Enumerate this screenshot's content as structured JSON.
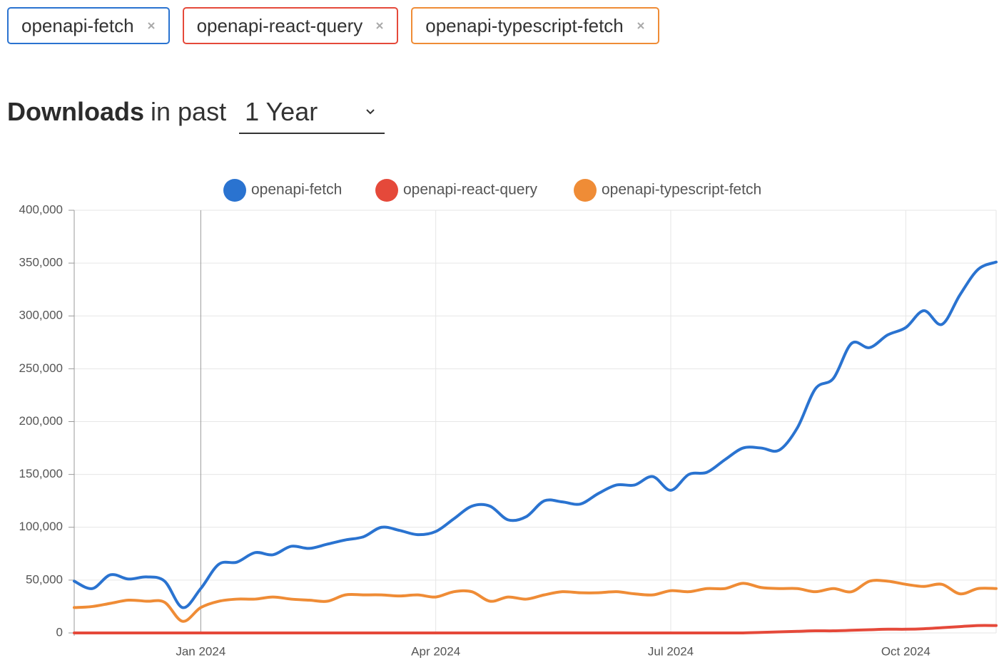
{
  "tags": [
    {
      "label": "openapi-fetch",
      "color": "#2a73d0"
    },
    {
      "label": "openapi-react-query",
      "color": "#e5493a"
    },
    {
      "label": "openapi-typescript-fetch",
      "color": "#ef8c36"
    }
  ],
  "heading": {
    "title": "Downloads",
    "suffix": "in past",
    "period": "1 Year"
  },
  "chart_data": {
    "type": "line",
    "legend": "top",
    "grid": true,
    "categories": [
      null,
      null,
      null,
      null,
      null,
      null,
      null,
      "Jan 2024",
      null,
      null,
      null,
      null,
      null,
      null,
      null,
      null,
      null,
      null,
      null,
      null,
      "Apr 2024",
      null,
      null,
      null,
      null,
      null,
      null,
      null,
      null,
      null,
      null,
      null,
      null,
      "Jul 2024",
      null,
      null,
      null,
      null,
      null,
      null,
      null,
      null,
      null,
      null,
      null,
      null,
      "Oct 2024",
      null,
      null,
      null,
      null,
      null
    ],
    "ylim": [
      0,
      400000
    ],
    "yticks": [
      0,
      {
        "value": 50000,
        "label": "50,000"
      },
      {
        "value": 100000,
        "label": "100,000"
      },
      {
        "value": 150000,
        "label": "150,000"
      },
      {
        "value": 200000,
        "label": "200,000"
      },
      {
        "value": 250000,
        "label": "250,000"
      },
      {
        "value": 300000,
        "label": "300,000"
      },
      {
        "value": 350000,
        "label": "350,000"
      },
      {
        "value": 400000,
        "label": "400,000"
      }
    ],
    "series": [
      {
        "name": "openapi-fetch",
        "color": "#2a73d0",
        "values": [
          49000,
          42000,
          55000,
          51000,
          53000,
          49000,
          24000,
          42000,
          65000,
          67000,
          76000,
          74000,
          82000,
          80000,
          84000,
          88000,
          91000,
          100000,
          97000,
          93000,
          96000,
          108000,
          120000,
          120000,
          107000,
          110000,
          125000,
          124000,
          122000,
          132000,
          140000,
          140000,
          148000,
          135000,
          150000,
          152000,
          164000,
          175000,
          175000,
          173000,
          194000,
          231000,
          241000,
          274000,
          270000,
          282000,
          289000,
          305000,
          292000,
          320000,
          344000,
          351000
        ]
      },
      {
        "name": "openapi-react-query",
        "color": "#e5493a",
        "values": [
          0,
          0,
          0,
          0,
          0,
          0,
          0,
          0,
          0,
          0,
          0,
          0,
          0,
          0,
          0,
          0,
          0,
          0,
          0,
          0,
          0,
          0,
          0,
          0,
          0,
          0,
          0,
          0,
          0,
          0,
          0,
          0,
          0,
          0,
          0,
          0,
          0,
          0,
          500,
          1000,
          1500,
          2000,
          2000,
          2500,
          3000,
          3500,
          3500,
          4000,
          5000,
          6000,
          7000,
          7000
        ]
      },
      {
        "name": "openapi-typescript-fetch",
        "color": "#ef8c36",
        "values": [
          24000,
          25000,
          28000,
          31000,
          30000,
          29000,
          11000,
          24000,
          30000,
          32000,
          32000,
          34000,
          32000,
          31000,
          30000,
          36000,
          36000,
          36000,
          35000,
          36000,
          34000,
          39000,
          39000,
          30000,
          34000,
          32000,
          36000,
          39000,
          38000,
          38000,
          39000,
          37000,
          36000,
          40000,
          39000,
          42000,
          42000,
          47000,
          43000,
          42000,
          42000,
          39000,
          42000,
          39000,
          49000,
          49000,
          46000,
          44000,
          46000,
          37000,
          42000,
          42000
        ]
      }
    ]
  }
}
